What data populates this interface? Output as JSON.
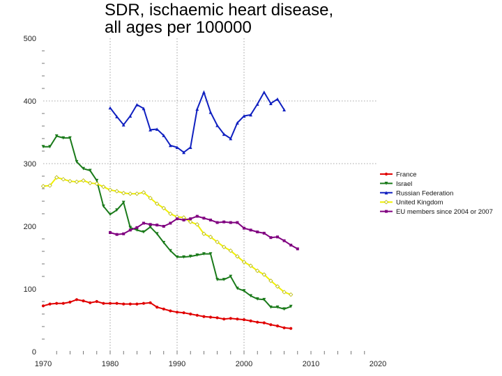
{
  "chart_data": {
    "type": "line",
    "title": [
      "SDR, ischaemic heart disease,",
      "all ages per 100000"
    ],
    "xlabel": "",
    "ylabel": "",
    "xlim": [
      1970,
      2020
    ],
    "ylim": [
      0,
      500
    ],
    "xticks": [
      "1970",
      "1980",
      "1990",
      "2000",
      "2010",
      "2020"
    ],
    "yticks": [
      "0",
      "100",
      "200",
      "300",
      "400",
      "500"
    ],
    "grid": "dotted at 1980, 1990, 2000 and 300, 400",
    "legend_position": "right",
    "series": [
      {
        "name": "France",
        "color": "#e00000",
        "marker": "circle",
        "x": [
          1970,
          1971,
          1972,
          1973,
          1974,
          1975,
          1976,
          1977,
          1978,
          1979,
          1980,
          1981,
          1982,
          1983,
          1984,
          1985,
          1986,
          1987,
          1988,
          1989,
          1990,
          1991,
          1992,
          1993,
          1994,
          1995,
          1996,
          1997,
          1998,
          1999,
          2000,
          2001,
          2002,
          2003,
          2004,
          2005,
          2006,
          2007
        ],
        "y": [
          73,
          76,
          77,
          77,
          79,
          83,
          81,
          78,
          80,
          77,
          77,
          77,
          76,
          76,
          76,
          77,
          78,
          71,
          68,
          65,
          63,
          62,
          60,
          58,
          56,
          55,
          54,
          52,
          53,
          52,
          51,
          49,
          47,
          46,
          43,
          41,
          38,
          37
        ]
      },
      {
        "name": "Israel",
        "color": "#1a7a1a",
        "marker": "triangle-down",
        "x": [
          1970,
          1971,
          1972,
          1973,
          1974,
          1975,
          1976,
          1977,
          1978,
          1979,
          1980,
          1981,
          1982,
          1983,
          1984,
          1985,
          1986,
          1987,
          1988,
          1989,
          1990,
          1991,
          1992,
          1993,
          1994,
          1995,
          1996,
          1997,
          1998,
          1999,
          2000,
          2001,
          2002,
          2003,
          2004,
          2005,
          2006,
          2007
        ],
        "y": [
          327,
          327,
          344,
          341,
          341,
          303,
          292,
          289,
          273,
          232,
          219,
          226,
          238,
          198,
          194,
          191,
          199,
          188,
          174,
          161,
          151,
          151,
          152,
          154,
          156,
          156,
          115,
          115,
          120,
          101,
          97,
          89,
          84,
          83,
          71,
          71,
          68,
          72
        ]
      },
      {
        "name": "Russian Federation",
        "color": "#1020c0",
        "marker": "triangle-up",
        "x": [
          1980,
          1981,
          1982,
          1983,
          1984,
          1985,
          1986,
          1987,
          1988,
          1989,
          1990,
          1991,
          1992,
          1993,
          1994,
          1995,
          1996,
          1997,
          1998,
          1999,
          2000,
          2001,
          2002,
          2003,
          2004,
          2005,
          2006
        ],
        "y": [
          389,
          375,
          362,
          376,
          394,
          388,
          354,
          355,
          345,
          329,
          326,
          318,
          326,
          387,
          414,
          382,
          361,
          347,
          340,
          365,
          376,
          378,
          395,
          414,
          396,
          403,
          386
        ]
      },
      {
        "name": "United Kingdom",
        "color": "#f0f000",
        "marker": "diamond",
        "x": [
          1970,
          1971,
          1972,
          1973,
          1974,
          1975,
          1976,
          1977,
          1978,
          1979,
          1980,
          1981,
          1982,
          1983,
          1984,
          1985,
          1986,
          1987,
          1988,
          1989,
          1990,
          1991,
          1992,
          1993,
          1994,
          1995,
          1996,
          1997,
          1998,
          1999,
          2000,
          2001,
          2002,
          2003,
          2004,
          2005,
          2006,
          2007
        ],
        "y": [
          264,
          265,
          278,
          275,
          272,
          271,
          273,
          269,
          268,
          263,
          258,
          256,
          253,
          252,
          252,
          254,
          245,
          236,
          229,
          220,
          215,
          214,
          207,
          203,
          188,
          183,
          175,
          167,
          161,
          152,
          143,
          137,
          129,
          123,
          113,
          104,
          95,
          91
        ]
      },
      {
        "name": "EU members since 2004 or 2007",
        "color": "#800080",
        "marker": "square",
        "x": [
          1980,
          1981,
          1982,
          1983,
          1984,
          1985,
          1986,
          1987,
          1988,
          1989,
          1990,
          1991,
          1992,
          1993,
          1994,
          1995,
          1996,
          1997,
          1998,
          1999,
          2000,
          2001,
          2002,
          2003,
          2004,
          2005,
          2006,
          2007,
          2008
        ],
        "y": [
          190,
          187,
          188,
          194,
          198,
          205,
          203,
          202,
          200,
          205,
          212,
          210,
          212,
          216,
          213,
          210,
          206,
          207,
          206,
          206,
          197,
          194,
          191,
          189,
          182,
          183,
          177,
          170,
          164
        ]
      }
    ]
  }
}
